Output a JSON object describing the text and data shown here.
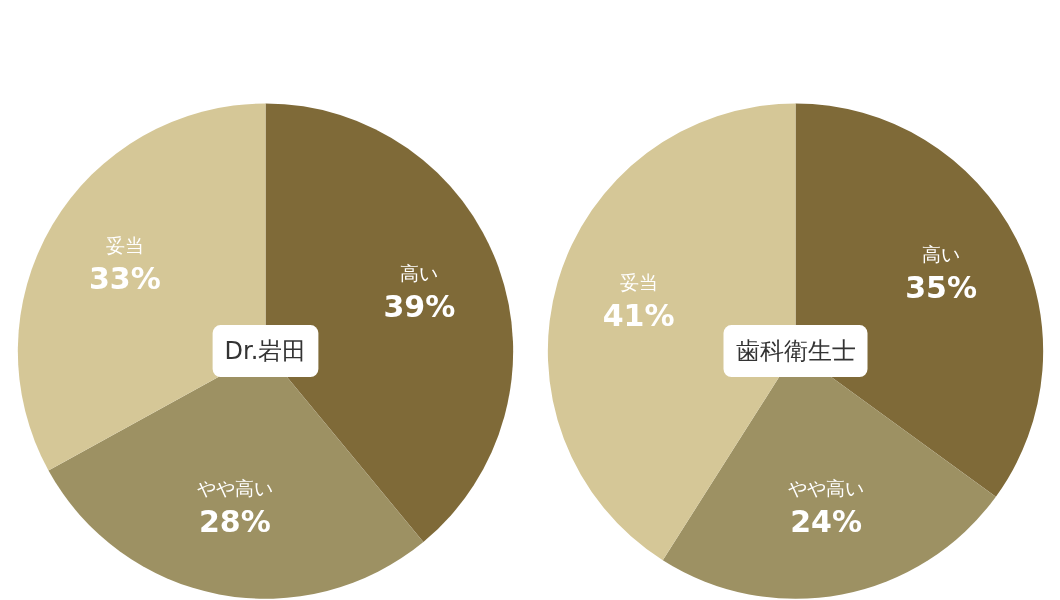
{
  "chart_data": [
    {
      "type": "pie",
      "title": "Dr.岩田",
      "categories": [
        "高い",
        "やや高い",
        "妥当"
      ],
      "values": [
        39,
        28,
        33
      ],
      "colors": [
        "#7f6a38",
        "#9d9163",
        "#d5c797"
      ],
      "value_labels": [
        "39%",
        "28%",
        "33%"
      ]
    },
    {
      "type": "pie",
      "title": "歯科衛生士",
      "categories": [
        "高い",
        "やや高い",
        "妥当"
      ],
      "values": [
        35,
        24,
        41
      ],
      "colors": [
        "#7f6a38",
        "#9d9163",
        "#d5c797"
      ],
      "value_labels": [
        "35%",
        "24%",
        "41%"
      ]
    }
  ]
}
